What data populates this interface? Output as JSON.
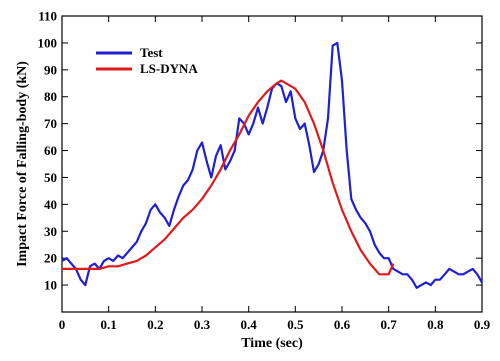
{
  "chart_data": {
    "type": "line",
    "title": "",
    "xlabel": "Time (sec)",
    "ylabel": "Impact Force of Falling-body (kN)",
    "xlim": [
      0,
      0.9
    ],
    "ylim": [
      0,
      110
    ],
    "xticks": [
      0,
      0.1,
      0.2,
      0.3,
      0.4,
      0.5,
      0.6,
      0.7,
      0.8,
      0.9
    ],
    "xtick_labels": [
      "0",
      "0.1",
      "0.2",
      "0.3",
      "0.4",
      "0.5",
      "0.6",
      "0.7",
      "0.8",
      "0.9"
    ],
    "yticks": [
      10,
      20,
      30,
      40,
      50,
      60,
      70,
      80,
      90,
      100,
      110
    ],
    "ytick_labels": [
      "10",
      "20",
      "30",
      "40",
      "50",
      "60",
      "70",
      "80",
      "90",
      "100",
      "110"
    ],
    "grid": false,
    "legend_position": "top-left",
    "series": [
      {
        "name": "Test",
        "color": "#1f1fd6",
        "x": [
          0,
          0.01,
          0.02,
          0.03,
          0.04,
          0.05,
          0.06,
          0.07,
          0.08,
          0.09,
          0.1,
          0.11,
          0.12,
          0.13,
          0.14,
          0.15,
          0.16,
          0.17,
          0.18,
          0.19,
          0.2,
          0.21,
          0.22,
          0.23,
          0.24,
          0.25,
          0.26,
          0.27,
          0.28,
          0.29,
          0.3,
          0.31,
          0.32,
          0.33,
          0.34,
          0.35,
          0.36,
          0.37,
          0.38,
          0.39,
          0.4,
          0.41,
          0.42,
          0.43,
          0.44,
          0.45,
          0.46,
          0.47,
          0.48,
          0.49,
          0.5,
          0.51,
          0.52,
          0.53,
          0.54,
          0.55,
          0.56,
          0.57,
          0.58,
          0.59,
          0.6,
          0.61,
          0.62,
          0.63,
          0.64,
          0.65,
          0.66,
          0.67,
          0.68,
          0.69,
          0.7,
          0.71,
          0.72,
          0.73,
          0.74,
          0.75,
          0.76,
          0.77,
          0.78,
          0.79,
          0.8,
          0.81,
          0.82,
          0.83,
          0.84,
          0.85,
          0.86,
          0.87,
          0.88,
          0.89,
          0.9
        ],
        "y": [
          19,
          20,
          18,
          16,
          12,
          10,
          17,
          18,
          16,
          19,
          20,
          19,
          21,
          20,
          22,
          24,
          26,
          30,
          33,
          38,
          40,
          37,
          35,
          32,
          38,
          43,
          47,
          49,
          53,
          60,
          63,
          56,
          50,
          58,
          62,
          53,
          56,
          60,
          72,
          70,
          66,
          70,
          76,
          70,
          76,
          83,
          85,
          84,
          78,
          82,
          72,
          68,
          70,
          62,
          52,
          55,
          60,
          72,
          99,
          100,
          86,
          60,
          42,
          38,
          35,
          33,
          30,
          25,
          22,
          20,
          20,
          16,
          15,
          14,
          14,
          12,
          9,
          10,
          11,
          10,
          12,
          12,
          14,
          16,
          15,
          14,
          14,
          15,
          16,
          14,
          11
        ]
      },
      {
        "name": "LS-DYNA",
        "color": "#e01a1a",
        "x": [
          0,
          0.02,
          0.04,
          0.06,
          0.08,
          0.1,
          0.12,
          0.14,
          0.16,
          0.18,
          0.2,
          0.22,
          0.24,
          0.26,
          0.28,
          0.3,
          0.32,
          0.34,
          0.36,
          0.38,
          0.4,
          0.42,
          0.44,
          0.46,
          0.47,
          0.48,
          0.5,
          0.52,
          0.54,
          0.56,
          0.58,
          0.6,
          0.62,
          0.64,
          0.66,
          0.68,
          0.7,
          0.71
        ],
        "y": [
          16,
          16,
          16,
          16,
          16,
          17,
          17,
          18,
          19,
          21,
          24,
          27,
          31,
          35,
          38,
          42,
          47,
          53,
          60,
          66,
          73,
          78,
          82,
          85,
          86,
          85,
          83,
          78,
          70,
          60,
          48,
          38,
          30,
          23,
          18,
          14,
          14,
          18
        ]
      }
    ]
  }
}
